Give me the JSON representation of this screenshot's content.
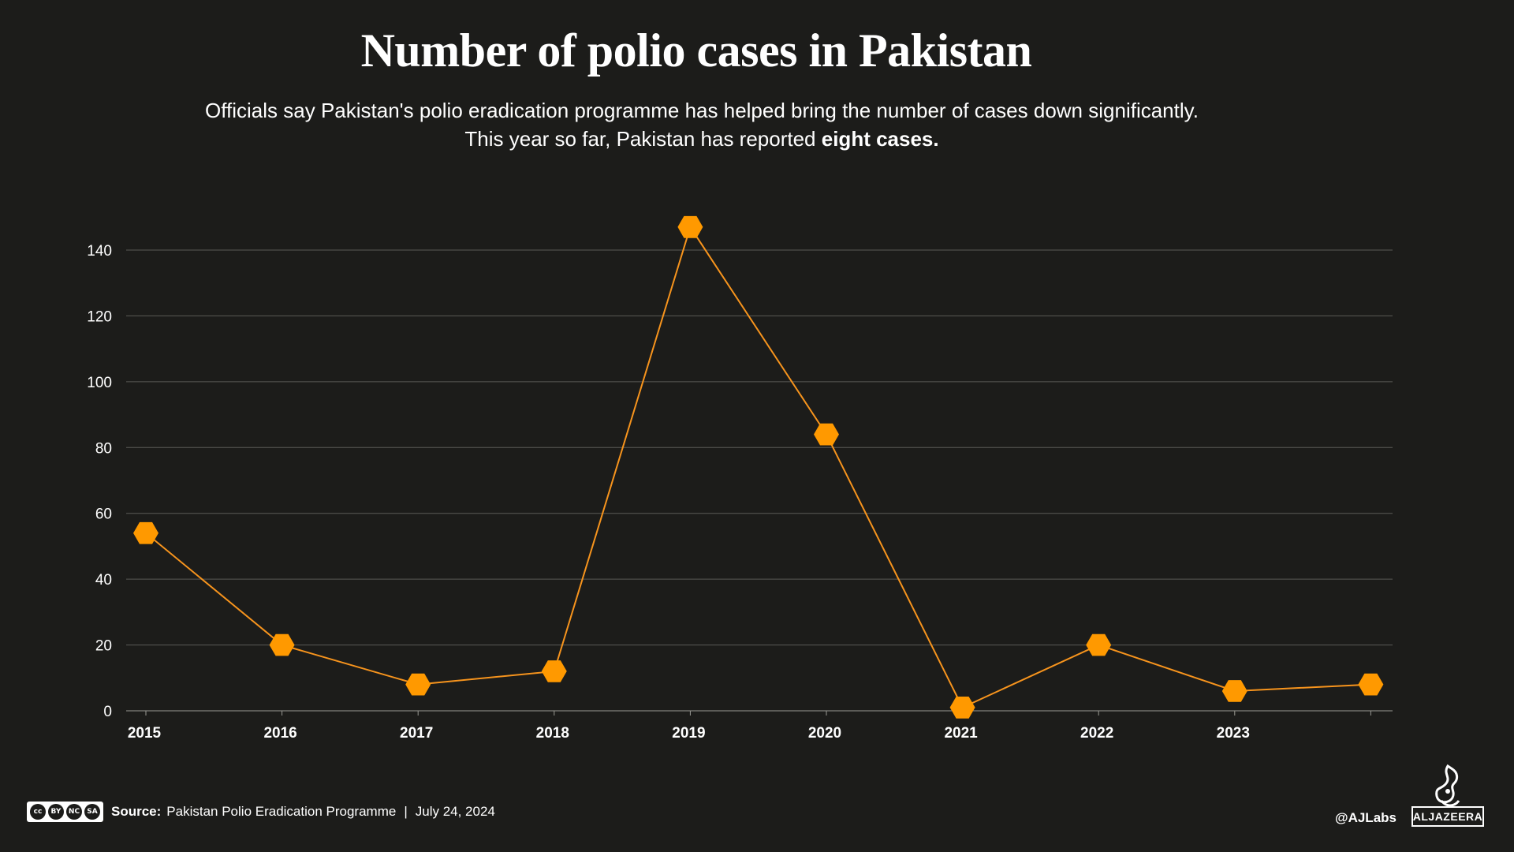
{
  "title": "Number of polio cases in Pakistan",
  "subtitle_line1": "Officials say Pakistan's polio eradication programme has helped bring the number of cases down significantly.",
  "subtitle_line2_prefix": "This year so far, Pakistan has reported",
  "subtitle_line2_bold": "eight cases.",
  "colors": {
    "background": "#1c1c1a",
    "line": "#f7941d",
    "marker": "#ff9900",
    "grid": "#5a5a56",
    "text": "#ffffff"
  },
  "chart_data": {
    "type": "line",
    "title": "Number of polio cases in Pakistan",
    "x_tick_labels": [
      "2015",
      "2016",
      "2017",
      "2018",
      "2019",
      "2020",
      "2021",
      "2022",
      "2023"
    ],
    "y_ticks": [
      0,
      20,
      40,
      60,
      80,
      100,
      120,
      140
    ],
    "ylim": [
      0,
      140
    ],
    "grid": true,
    "marker": "hexagon",
    "x": [
      2015,
      2016,
      2017,
      2018,
      2019,
      2020,
      2021,
      2022,
      2023,
      2024
    ],
    "values": [
      54,
      20,
      8,
      12,
      147,
      84,
      1,
      20,
      6,
      8
    ],
    "note": "final point is the 2024 year-to-date value"
  },
  "footer": {
    "license_badges": [
      "cc",
      "BY",
      "NC",
      "SA"
    ],
    "source_label": "Source:",
    "source_text": "Pakistan Polio Eradication Programme",
    "separator": "|",
    "date": "July 24, 2024",
    "handle": "@AJLabs",
    "logo_text": "ALJAZEERA",
    "logo_icon": "al-jazeera-calligraphy-icon"
  }
}
